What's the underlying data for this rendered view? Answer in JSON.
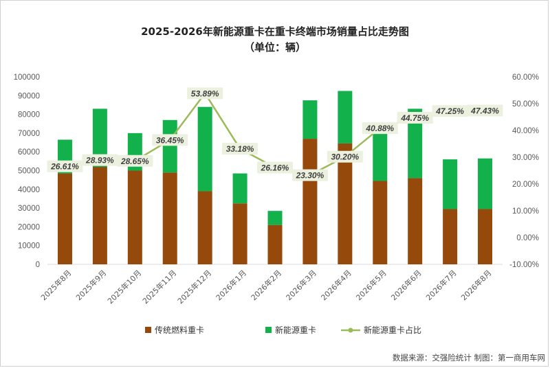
{
  "chart_data": {
    "type": "bar",
    "title": "2025-2026年新能源重卡在重卡终端市场销量占比走势图",
    "subtitle": "（单位：辆）",
    "categories": [
      "2025年8月",
      "2025年9月",
      "2025年10月",
      "2025年11月",
      "2025年12月",
      "2026年1月",
      "2026年2月",
      "2026年3月",
      "2026年4月",
      "2026年5月",
      "2026年6月",
      "2026年7月",
      "2026年8月"
    ],
    "series": [
      {
        "name": "传统燃料重卡",
        "axis": "left",
        "type": "bar",
        "stacked": true,
        "color": "#954a0c",
        "values": [
          48500,
          52000,
          50000,
          49000,
          39000,
          32500,
          21000,
          67000,
          64500,
          44500,
          46000,
          29500,
          29500
        ]
      },
      {
        "name": "新能源重卡",
        "axis": "left",
        "type": "bar",
        "stacked": true,
        "color": "#13b14c",
        "values": [
          18000,
          31000,
          20000,
          28000,
          45000,
          16000,
          7500,
          20500,
          28000,
          26000,
          37000,
          26500,
          27000
        ]
      },
      {
        "name": "新能源重卡占比",
        "axis": "right",
        "type": "line",
        "color": "#9bbb59",
        "values": [
          26.61,
          28.93,
          28.65,
          36.45,
          53.89,
          33.18,
          26.16,
          23.3,
          30.2,
          40.88,
          44.75,
          47.25,
          47.43
        ],
        "labels": [
          "26.61%",
          "28.93%",
          "28.65%",
          "36.45%",
          "53.89%",
          "33.18%",
          "26.16%",
          "23.30%",
          "30.20%",
          "40.88%",
          "44.75%",
          "47.25%",
          "47.43%"
        ]
      }
    ],
    "y_left": {
      "ylim": [
        0,
        100000
      ],
      "ticks": [
        "0",
        "10000",
        "20000",
        "30000",
        "40000",
        "50000",
        "60000",
        "70000",
        "80000",
        "90000",
        "100000"
      ]
    },
    "y_right": {
      "ylim": [
        -10,
        60
      ],
      "ticks": [
        "-10.00%",
        "0.00%",
        "10.00%",
        "20.00%",
        "30.00%",
        "40.00%",
        "50.00%",
        "60.00%"
      ]
    },
    "grid": false,
    "legend_position": "bottom"
  },
  "source": "数据来源：交强险统计  制图：第一商用车网"
}
